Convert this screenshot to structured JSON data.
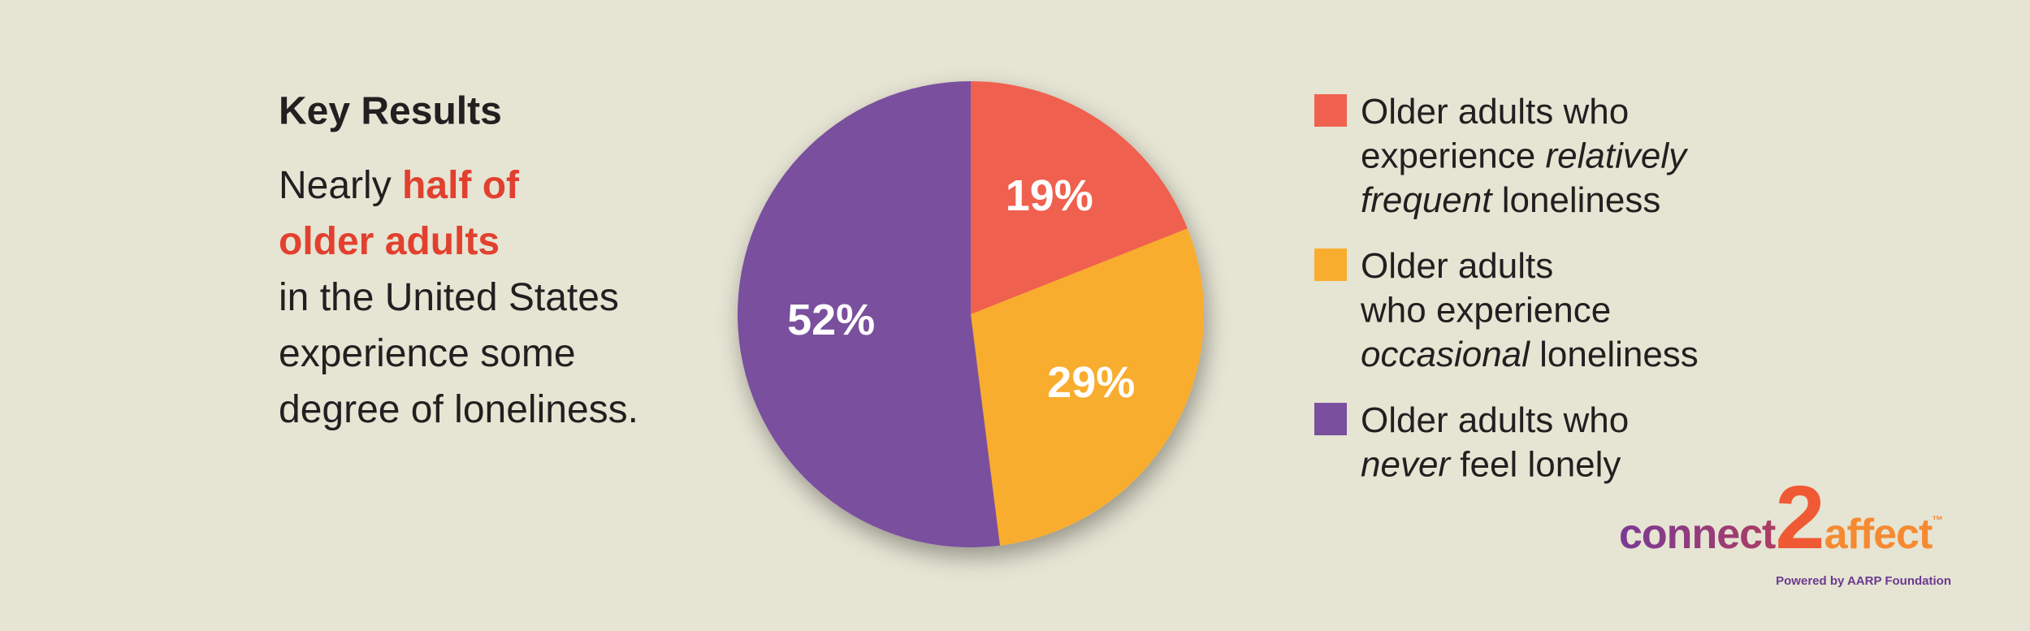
{
  "chart_data": {
    "type": "pie",
    "categories": [
      [
        [
          {
            "text": "Older adults who"
          }
        ],
        [
          {
            "text": "experience "
          },
          {
            "text": "relatively",
            "italic": true
          }
        ],
        [
          {
            "text": "frequent",
            "italic": true
          },
          {
            "text": " loneliness"
          }
        ]
      ],
      [
        [
          {
            "text": "Older adults"
          }
        ],
        [
          {
            "text": "who experience"
          }
        ],
        [
          {
            "text": "occasional",
            "italic": true
          },
          {
            "text": " loneliness"
          }
        ]
      ],
      [
        [
          {
            "text": "Older adults who"
          }
        ],
        [
          {
            "text": "never",
            "italic": true
          },
          {
            "text": " feel lonely"
          }
        ]
      ]
    ],
    "values": [
      19,
      29,
      52
    ],
    "value_labels": [
      "19%",
      "29%",
      "52%"
    ],
    "colors": [
      "#f06150",
      "#f9ad2f",
      "#7a4f9e"
    ]
  },
  "text_block": {
    "title": "Key Results",
    "lines": [
      [
        {
          "text": "Nearly "
        },
        {
          "text": "half of",
          "highlight": true
        }
      ],
      [
        {
          "text": "older adults",
          "highlight": true
        }
      ],
      [
        {
          "text": "in the United States"
        }
      ],
      [
        {
          "text": "experience some"
        }
      ],
      [
        {
          "text": "degree of loneliness."
        }
      ]
    ]
  },
  "logo": {
    "parts": [
      "connect",
      "2",
      "affect",
      "™"
    ],
    "tagline": "Powered by AARP Foundation"
  }
}
